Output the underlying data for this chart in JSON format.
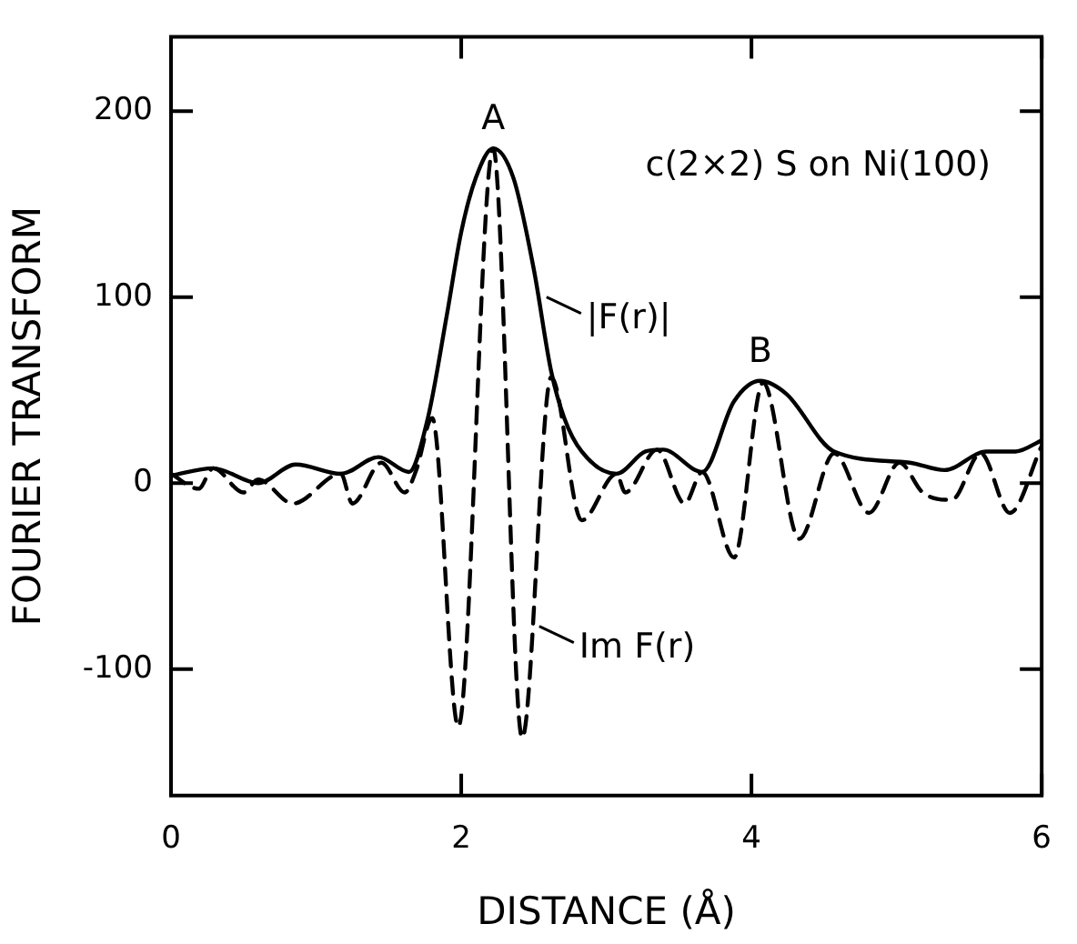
{
  "chart_data": {
    "type": "line",
    "title": "c(2×2) S on Ni(100)",
    "xlabel": "DISTANCE (Å)",
    "ylabel": "FOURIER TRANSFORM",
    "xlim": [
      0,
      6
    ],
    "xticks": [
      0,
      2,
      4,
      6
    ],
    "ylim": [
      -168,
      240
    ],
    "yticks": [
      -100,
      0,
      100,
      200
    ],
    "grid": false,
    "legend": false,
    "marker": "none",
    "series": [
      {
        "color": "#000000",
        "line_style": "solid",
        "x": [
          0,
          0.29,
          0.6,
          0.86,
          1.17,
          1.43,
          1.64,
          1.77,
          1.9,
          2.0,
          2.1,
          2.22,
          2.36,
          2.5,
          2.62,
          2.71,
          2.83,
          3.07,
          3.27,
          3.39,
          3.66,
          3.88,
          4.06,
          4.24,
          4.57,
          5.09,
          5.33,
          5.62,
          5.82,
          6
        ],
        "values": [
          4,
          8,
          0,
          10,
          5,
          14,
          6,
          35,
          90,
          135,
          164,
          180,
          164,
          115,
          60,
          35,
          17,
          5,
          17,
          18,
          6,
          44,
          55,
          48,
          17,
          11,
          7,
          17,
          17,
          23
        ]
      },
      {
        "color": "#000000",
        "line_style": "dashed",
        "x": [
          0,
          0.19,
          0.29,
          0.5,
          0.6,
          0.84,
          1.17,
          1.25,
          1.45,
          1.61,
          1.69,
          1.8,
          1.98,
          2.22,
          2.42,
          2.62,
          2.83,
          3.07,
          3.13,
          3.35,
          3.54,
          3.66,
          3.88,
          4.08,
          4.33,
          4.57,
          4.81,
          5.02,
          5.18,
          5.38,
          5.58,
          5.78,
          6
        ],
        "values": [
          5,
          -3,
          8,
          -5,
          2,
          -11,
          5,
          -11,
          11,
          -5,
          7,
          35,
          -131,
          180,
          -137,
          57,
          -20,
          5,
          -5,
          18,
          -11,
          6,
          -40,
          54,
          -30,
          16,
          -16,
          11,
          -5,
          -9,
          16,
          -16,
          20
        ]
      }
    ],
    "annotations": [
      {
        "text": "A",
        "x": 2.22,
        "y": 180
      },
      {
        "text": "B",
        "x": 4.06,
        "y": 55
      },
      {
        "text": "|F(r)|",
        "x": 2.55,
        "y": 100
      },
      {
        "text": "Im F(r)",
        "x": 2.5,
        "y": -77
      }
    ]
  }
}
